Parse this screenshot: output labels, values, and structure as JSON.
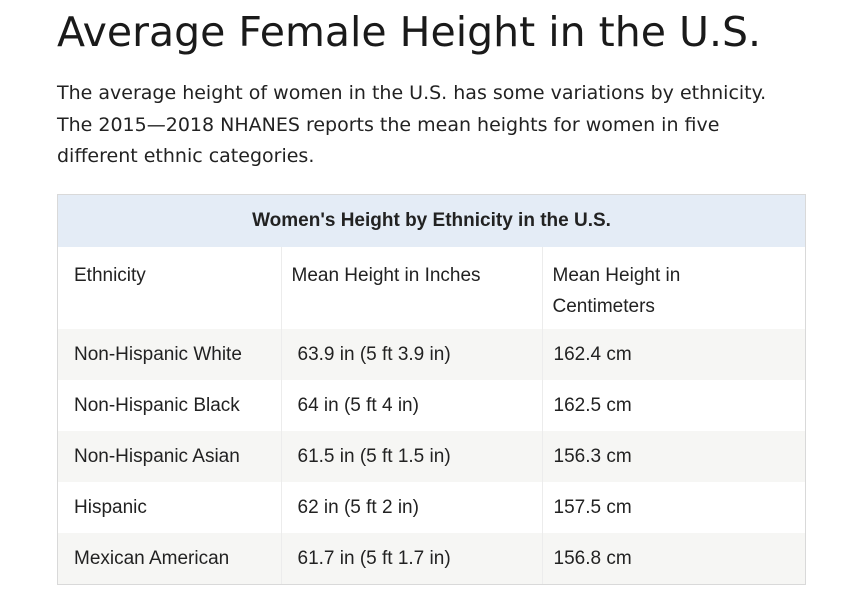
{
  "page": {
    "title": "Average Female Height in the U.S.",
    "intro": "The average height of women in the U.S. has some variations by ethnicity. The 2015—2018 NHANES reports the mean heights for women in five different ethnic categories."
  },
  "table": {
    "caption": "Women's Height by Ethnicity in the U.S.",
    "headers": [
      "Ethnicity",
      "Mean Height in Inches",
      "Mean Height in Centimeters"
    ],
    "rows": [
      [
        "Non-Hispanic White",
        "63.9 in (5 ft 3.9 in)",
        "162.4 cm"
      ],
      [
        "Non-Hispanic Black",
        "64 in (5 ft 4 in)",
        "162.5 cm"
      ],
      [
        "Non-Hispanic Asian",
        "61.5 in (5 ft 1.5 in)",
        "156.3 cm"
      ],
      [
        "Hispanic",
        "62 in (5 ft 2 in)",
        "157.5 cm"
      ],
      [
        "Mexican American",
        "61.7 in (5 ft 1.7 in)",
        "156.8 cm"
      ]
    ],
    "colors": {
      "caption_bg": "#e4ecf6",
      "stripe_bg": "#f6f6f4",
      "border": "#d9d9d9"
    }
  }
}
